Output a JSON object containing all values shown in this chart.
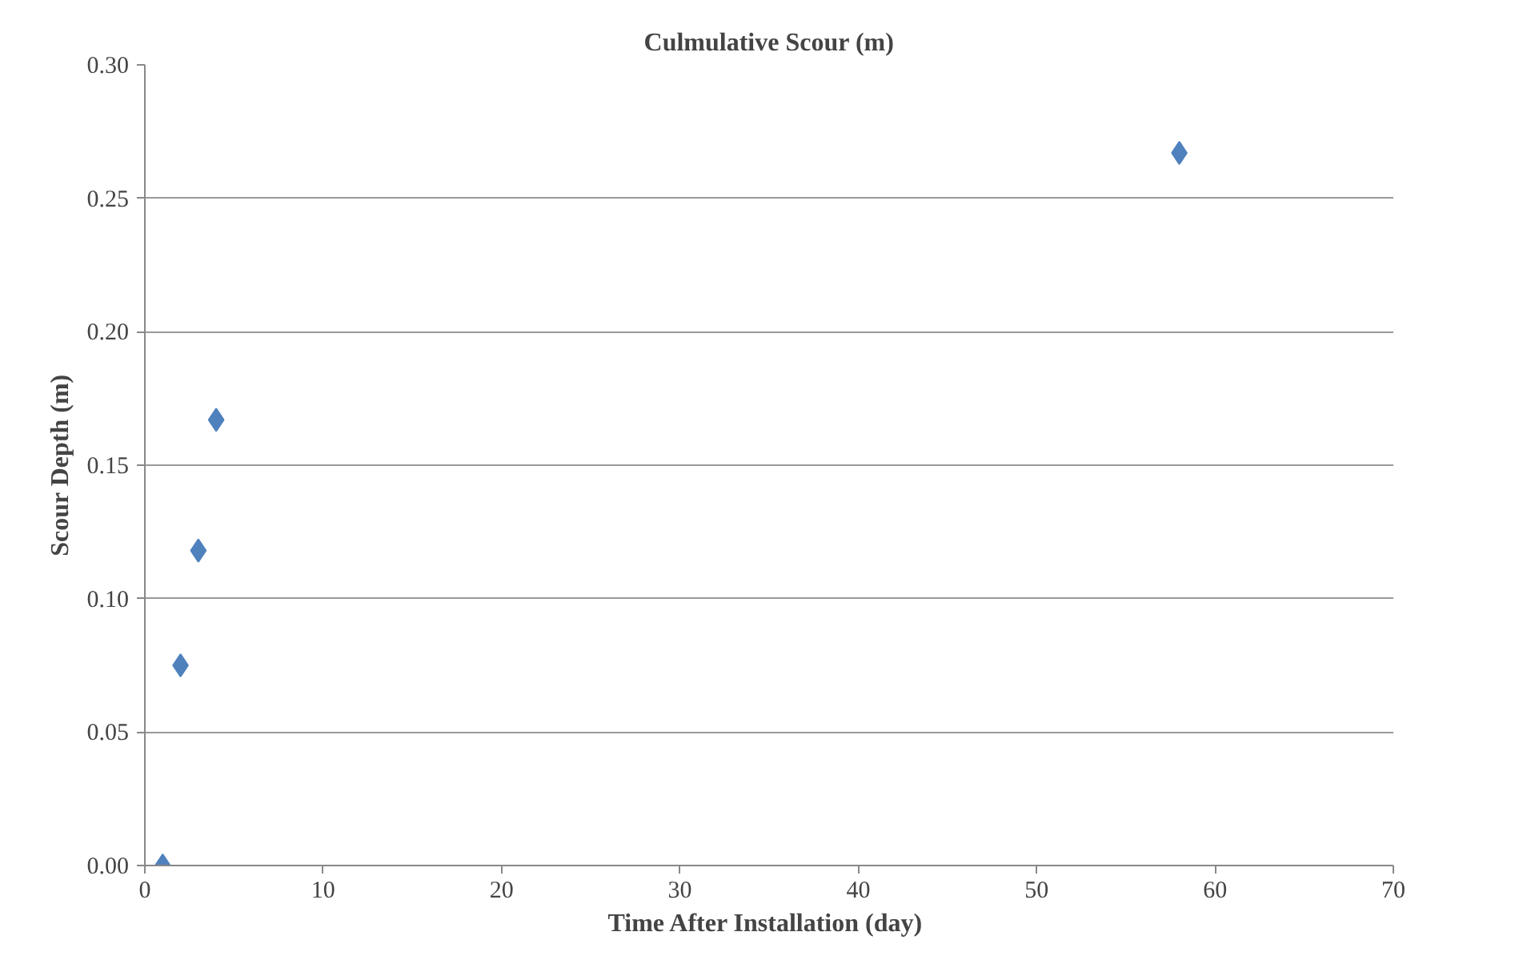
{
  "chart_data": {
    "type": "scatter",
    "title": "Culmulative Scour (m)",
    "xlabel": "Time  After Installation (day)",
    "ylabel": "Scour Depth (m)",
    "x": [
      1,
      2,
      3,
      4,
      58
    ],
    "series": [
      {
        "color": "#4f81bd",
        "values": [
          0.0,
          0.075,
          0.118,
          0.167,
          0.267
        ]
      }
    ],
    "xlim": [
      0,
      70
    ],
    "xticks": [
      0,
      10,
      20,
      30,
      40,
      50,
      60,
      70
    ],
    "ylim": [
      0,
      0.3
    ],
    "yticks": [
      {
        "value": 0,
        "label": "0.00"
      },
      {
        "value": 0.05,
        "label": "0.05"
      },
      {
        "value": 0.1,
        "label": "0.10"
      },
      {
        "value": 0.15,
        "label": "0.15"
      },
      {
        "value": 0.2,
        "label": "0.20"
      },
      {
        "value": 0.25,
        "label": "0.25"
      },
      {
        "value": 0.3,
        "label": "0.30"
      }
    ],
    "grid": "y",
    "marker": "diamond"
  }
}
